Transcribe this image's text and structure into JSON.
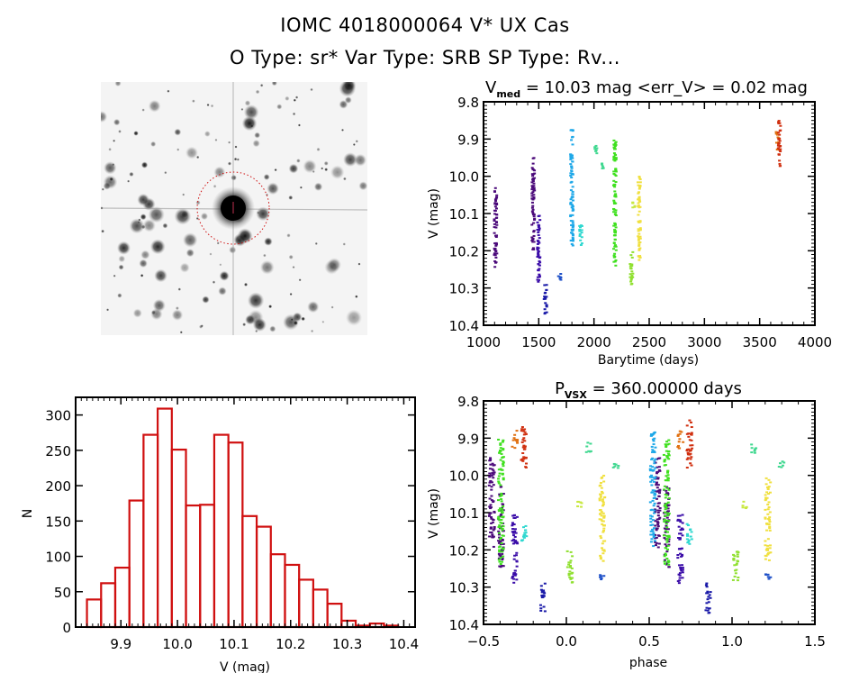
{
  "header": {
    "title": "IOMC 4018000064    V* UX Cas",
    "subtitle": "O Type: sr*  Var Type: SRB  SP Type: Rv..."
  },
  "image_panel": {
    "description": "DSS finder chart, inverted grayscale, target circled in red",
    "target_circle_color": "#d01010"
  },
  "chart_data": [
    {
      "id": "lightcurve",
      "type": "scatter",
      "title_prefix": "V",
      "title_sub": "med",
      "title_rest": " = 10.03 mag <err_V> = 0.02 mag",
      "xlabel": "Barytime (days)",
      "ylabel": "V (mag)",
      "xlim": [
        1000,
        4000
      ],
      "ylim": [
        10.4,
        9.8
      ],
      "y_inverted": true,
      "xticks": [
        "1000",
        "1500",
        "2000",
        "2500",
        "3000",
        "3500",
        "4000"
      ],
      "yticks": [
        "9.8",
        "9.9",
        "10.0",
        "10.1",
        "10.2",
        "10.3",
        "10.4"
      ],
      "grid": false,
      "series": [
        {
          "name": "s1",
          "color": "#4b0a7a",
          "x": 1110,
          "vmin": 10.03,
          "vmax": 10.25
        },
        {
          "name": "s2",
          "color": "#4b0a7a",
          "x": 1450,
          "vmin": 9.95,
          "vmax": 10.2
        },
        {
          "name": "s3",
          "color": "#3a0ca8",
          "x": 1500,
          "vmin": 10.1,
          "vmax": 10.29
        },
        {
          "name": "s4",
          "color": "#1a1aa8",
          "x": 1560,
          "vmin": 10.29,
          "vmax": 10.37
        },
        {
          "name": "s5",
          "color": "#1e50c8",
          "x": 1690,
          "vmin": 10.26,
          "vmax": 10.28
        },
        {
          "name": "s6",
          "color": "#1fa8e8",
          "x": 1800,
          "vmin": 9.87,
          "vmax": 10.19
        },
        {
          "name": "s7",
          "color": "#30d8d0",
          "x": 1880,
          "vmin": 10.13,
          "vmax": 10.19
        },
        {
          "name": "s8",
          "color": "#40d890",
          "x": 2020,
          "vmin": 9.91,
          "vmax": 9.94
        },
        {
          "name": "s9",
          "color": "#40d890",
          "x": 2080,
          "vmin": 9.96,
          "vmax": 9.98
        },
        {
          "name": "s10",
          "color": "#40e020",
          "x": 2190,
          "vmin": 9.9,
          "vmax": 10.24
        },
        {
          "name": "s11",
          "color": "#90e030",
          "x": 2340,
          "vmin": 10.2,
          "vmax": 10.29
        },
        {
          "name": "s12",
          "color": "#c8e840",
          "x": 2360,
          "vmin": 10.07,
          "vmax": 10.09
        },
        {
          "name": "s13",
          "color": "#f0e040",
          "x": 2410,
          "vmin": 10.0,
          "vmax": 10.23
        },
        {
          "name": "s14",
          "color": "#e07010",
          "x": 3660,
          "vmin": 9.88,
          "vmax": 9.93
        },
        {
          "name": "s15",
          "color": "#d03010",
          "x": 3680,
          "vmin": 9.85,
          "vmax": 9.98
        }
      ]
    },
    {
      "id": "histogram",
      "type": "bar",
      "xlabel": "V (mag)",
      "ylabel": "N",
      "xlim": [
        9.82,
        10.42
      ],
      "ylim": [
        0,
        325
      ],
      "xticks": [
        "9.9",
        "10.0",
        "10.1",
        "10.2",
        "10.3",
        "10.4"
      ],
      "yticks": [
        "0",
        "50",
        "100",
        "150",
        "200",
        "250",
        "300"
      ],
      "bin_width": 0.025,
      "bin_starts": [
        9.84,
        9.865,
        9.89,
        9.915,
        9.94,
        9.965,
        9.99,
        10.015,
        10.04,
        10.065,
        10.09,
        10.115,
        10.14,
        10.165,
        10.19,
        10.215,
        10.24,
        10.265,
        10.29,
        10.315,
        10.34,
        10.365
      ],
      "values": [
        39,
        62,
        84,
        179,
        272,
        309,
        251,
        172,
        173,
        272,
        261,
        157,
        142,
        103,
        88,
        67,
        53,
        33,
        9,
        2,
        5,
        2
      ],
      "color": "#d01010",
      "grid": false
    },
    {
      "id": "phased",
      "type": "scatter",
      "title_prefix": "P",
      "title_sub": "VSX",
      "title_rest": " = 360.00000 days",
      "xlabel": "phase",
      "ylabel": "V (mag)",
      "xlim": [
        -0.5,
        1.5
      ],
      "ylim": [
        10.4,
        9.8
      ],
      "y_inverted": true,
      "xticks": [
        "−0.5",
        "0.0",
        "0.5",
        "1.0",
        "1.5"
      ],
      "yticks": [
        "9.8",
        "9.9",
        "10.0",
        "10.1",
        "10.2",
        "10.3",
        "10.4"
      ],
      "period_days": 360.0,
      "grid": false
    }
  ]
}
